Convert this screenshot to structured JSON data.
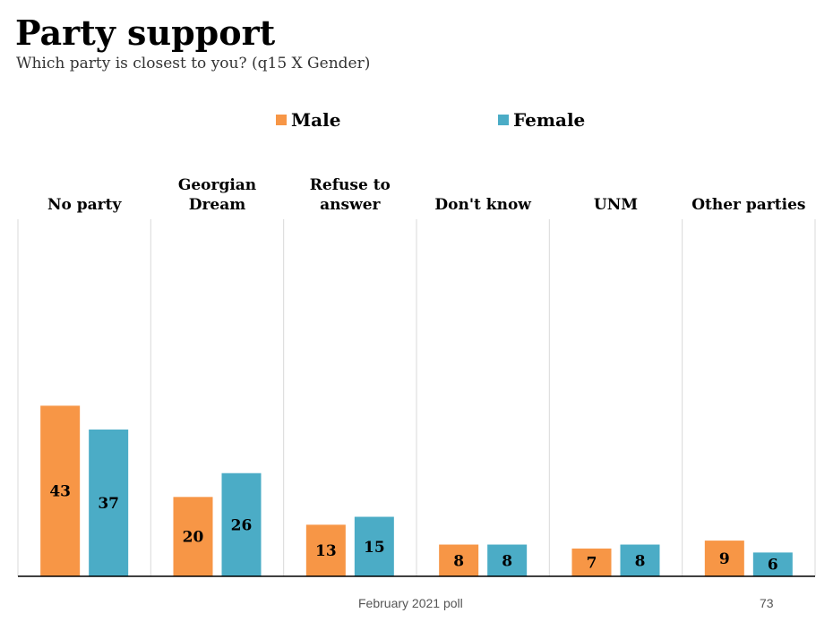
{
  "title": "Party support",
  "subtitle": "Which party is closest to you? (q15 X Gender)",
  "footer": "February 2021 poll",
  "page_number": "73",
  "colors": {
    "male": "#F79646",
    "female": "#4BACC6",
    "axis": "#000000",
    "divider": "#D9D9D9"
  },
  "chart_data": {
    "type": "bar",
    "title": "Party support",
    "subtitle": "Which party is closest to you? (q15 X Gender)",
    "legend_position": "top",
    "categories": [
      [
        "No party"
      ],
      [
        "Georgian",
        "Dream"
      ],
      [
        "Refuse to",
        "answer"
      ],
      [
        "Don't know"
      ],
      [
        "UNM"
      ],
      [
        "Other parties"
      ]
    ],
    "series": [
      {
        "name": "Male",
        "color": "#F79646",
        "values": [
          43,
          20,
          13,
          8,
          7,
          9
        ]
      },
      {
        "name": "Female",
        "color": "#4BACC6",
        "values": [
          37,
          26,
          15,
          8,
          8,
          6
        ]
      }
    ],
    "ylim": [
      0,
      90
    ],
    "grid": false
  }
}
